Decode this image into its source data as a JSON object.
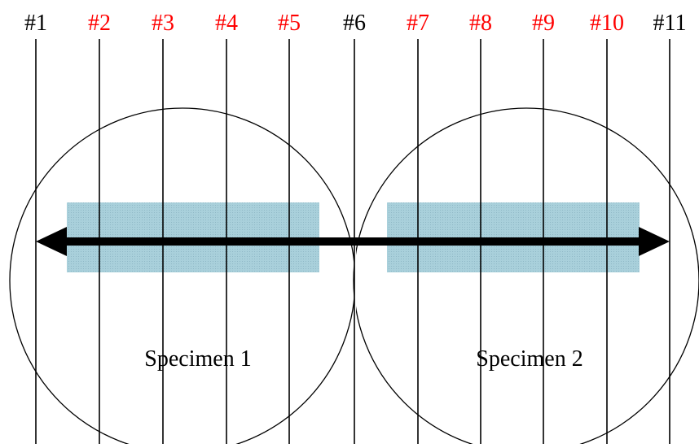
{
  "line_labels": [
    {
      "text": "#1",
      "color": "#000000"
    },
    {
      "text": "#2",
      "color": "#ff0000"
    },
    {
      "text": "#3",
      "color": "#ff0000"
    },
    {
      "text": "#4",
      "color": "#ff0000"
    },
    {
      "text": "#5",
      "color": "#ff0000"
    },
    {
      "text": "#6",
      "color": "#000000"
    },
    {
      "text": "#7",
      "color": "#ff0000"
    },
    {
      "text": "#8",
      "color": "#ff0000"
    },
    {
      "text": "#9",
      "color": "#ff0000"
    },
    {
      "text": "#10",
      "color": "#ff0000"
    },
    {
      "text": "#11",
      "color": "#000000"
    }
  ],
  "specimens": [
    {
      "label": "Specimen 1"
    },
    {
      "label": "Specimen 2"
    }
  ],
  "colors": {
    "strip_fill": "#a9d0db",
    "line": "#000000",
    "arrow": "#000000"
  }
}
